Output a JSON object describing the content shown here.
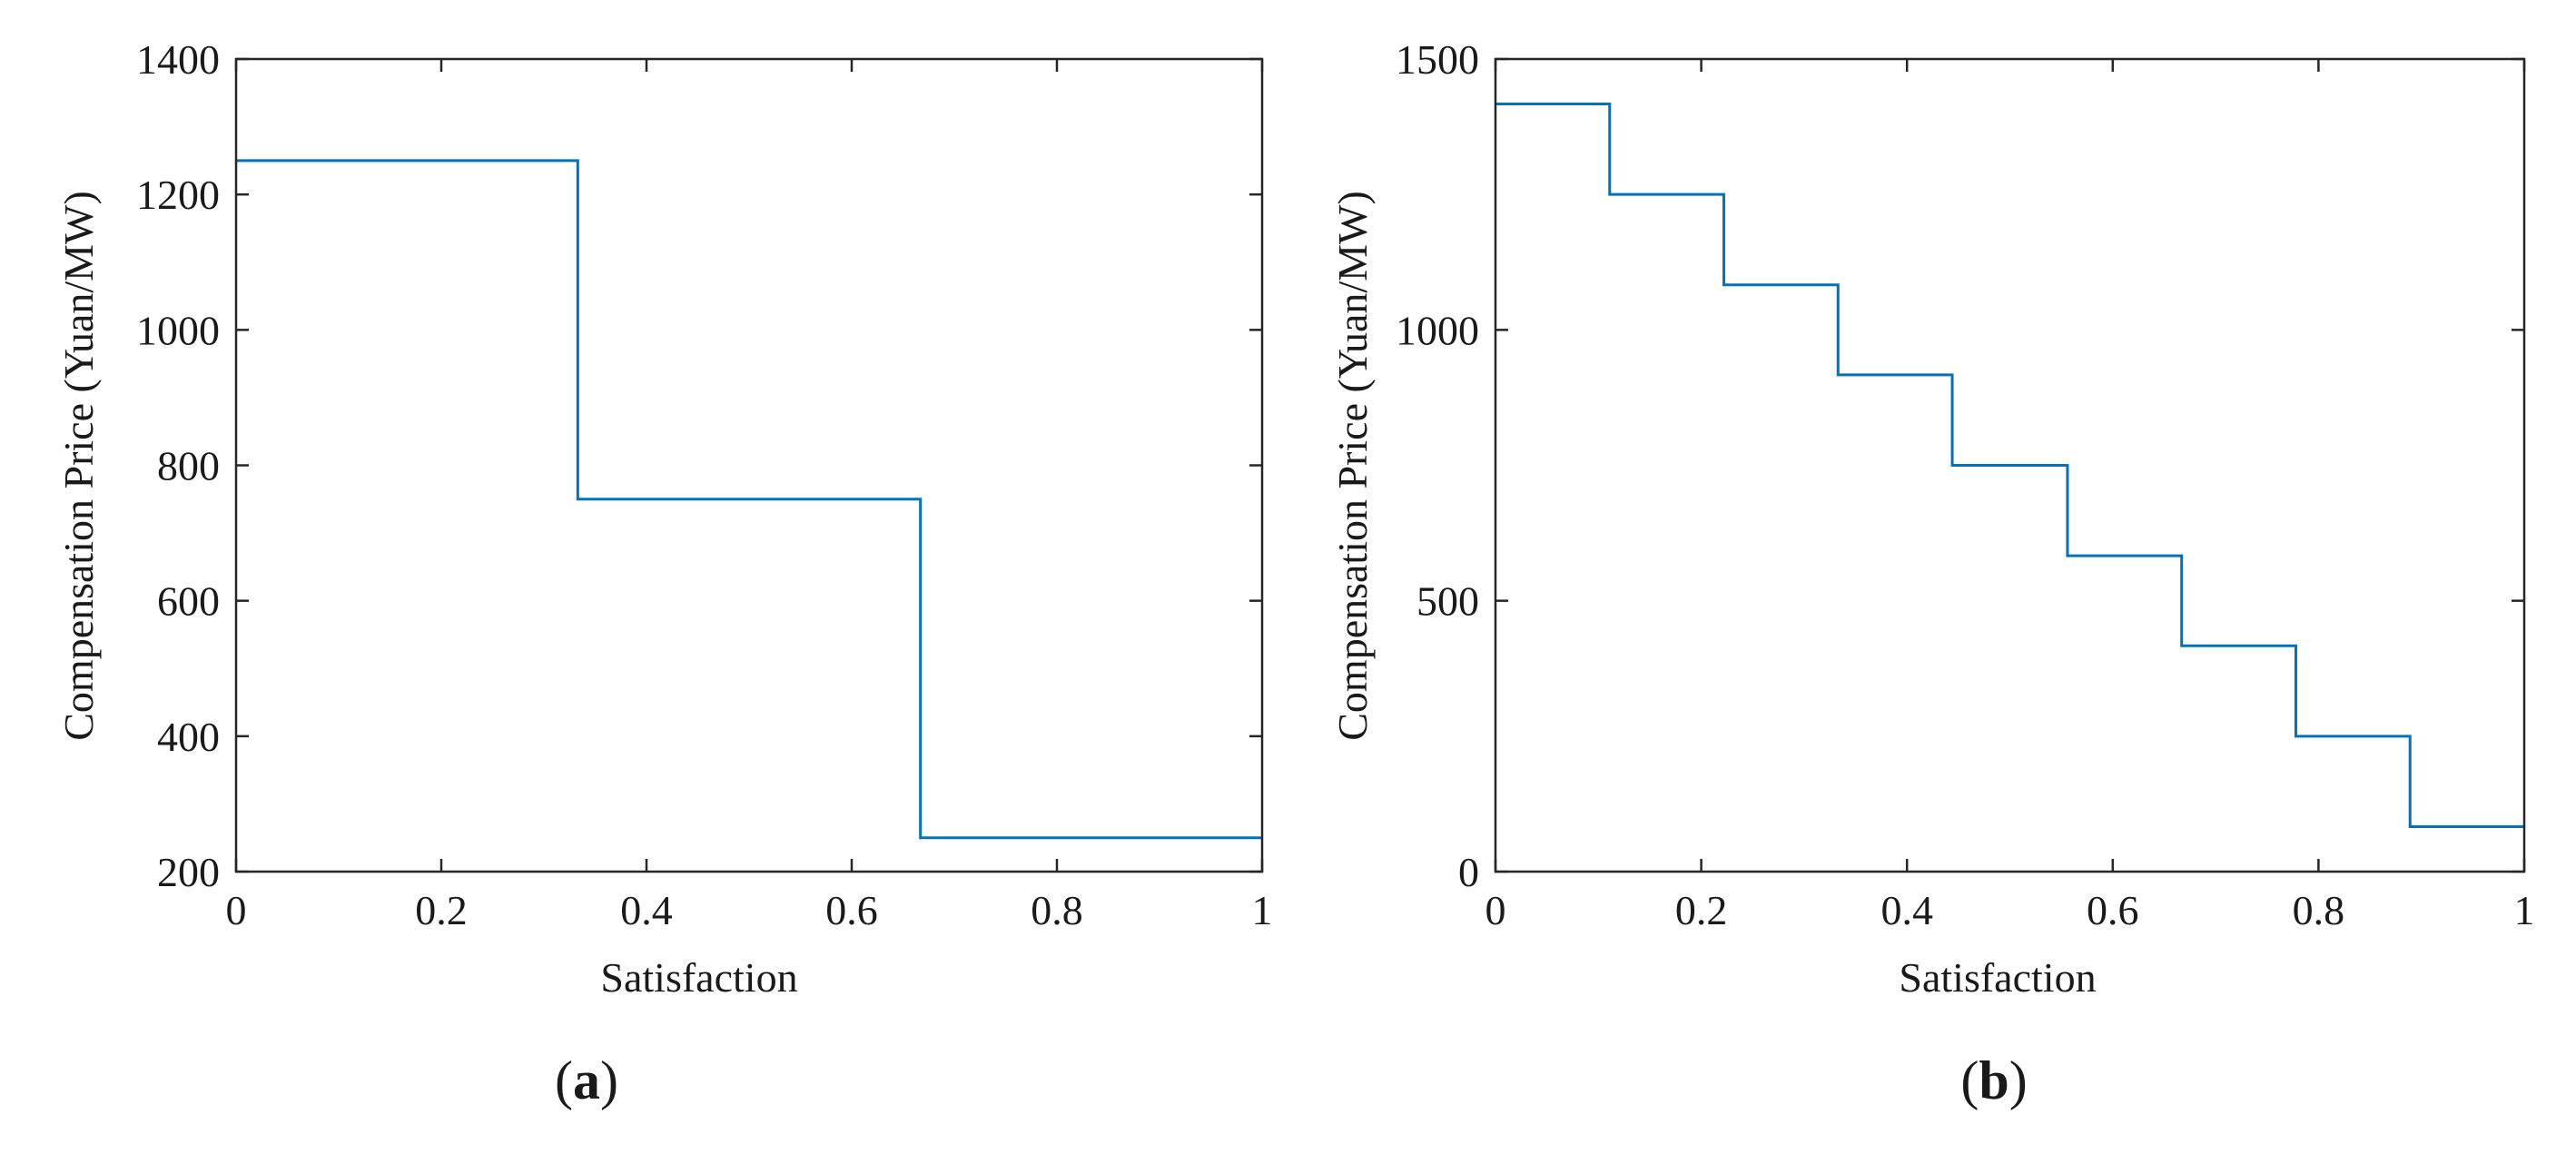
{
  "figure": {
    "panels": [
      {
        "label_open": "(",
        "label_letter": "a",
        "label_close": ")"
      },
      {
        "label_open": "(",
        "label_letter": "b",
        "label_close": ")"
      }
    ]
  },
  "chart_data": [
    {
      "type": "line",
      "step": "post",
      "title": "",
      "xlabel": "Satisfaction",
      "ylabel": "Compensation Price (Yuan/MW)",
      "xlim": [
        0,
        1
      ],
      "ylim": [
        200,
        1400
      ],
      "xticks": [
        0,
        0.2,
        0.4,
        0.6,
        0.8,
        1
      ],
      "xtick_labels": [
        "0",
        "0.2",
        "0.4",
        "0.6",
        "0.8",
        "1"
      ],
      "yticks": [
        200,
        400,
        600,
        800,
        1000,
        1200,
        1400
      ],
      "ytick_labels": [
        "200",
        "400",
        "600",
        "800",
        "1000",
        "1200",
        "1400"
      ],
      "grid": false,
      "color": "#0072BD",
      "series": [
        {
          "x": [
            0,
            0.333,
            0.667,
            1
          ],
          "y": [
            1250,
            750,
            250,
            250
          ]
        }
      ]
    },
    {
      "type": "line",
      "step": "post",
      "title": "",
      "xlabel": "Satisfaction",
      "ylabel": "Compensation Price (Yuan/MW)",
      "xlim": [
        0,
        1
      ],
      "ylim": [
        0,
        1500
      ],
      "xticks": [
        0,
        0.2,
        0.4,
        0.6,
        0.8,
        1
      ],
      "xtick_labels": [
        "0",
        "0.2",
        "0.4",
        "0.6",
        "0.8",
        "1"
      ],
      "yticks": [
        0,
        500,
        1000,
        1500
      ],
      "ytick_labels": [
        "0",
        "500",
        "1000",
        "1500"
      ],
      "grid": false,
      "color": "#0072BD",
      "series": [
        {
          "x": [
            0,
            0.111,
            0.222,
            0.333,
            0.444,
            0.556,
            0.667,
            0.778,
            0.889,
            1
          ],
          "y": [
            1417,
            1250,
            1083,
            917,
            750,
            583,
            417,
            250,
            83,
            83
          ]
        }
      ]
    }
  ]
}
